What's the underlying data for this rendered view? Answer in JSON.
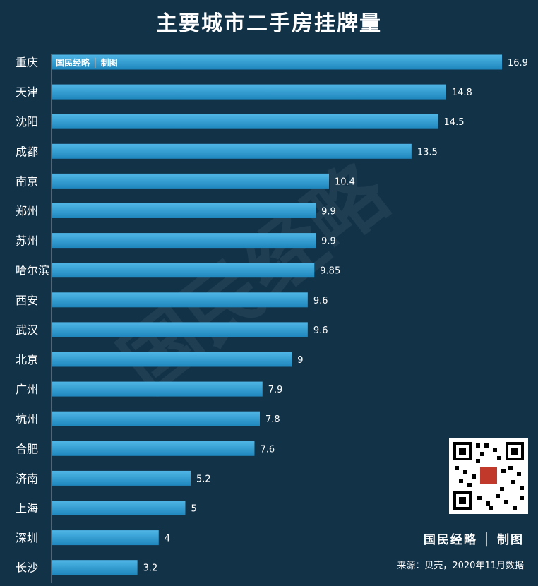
{
  "chart_data": {
    "type": "bar",
    "orientation": "horizontal",
    "title": "主要城市二手房挂牌量",
    "categories": [
      "重庆",
      "天津",
      "沈阳",
      "成都",
      "南京",
      "郑州",
      "苏州",
      "哈尔滨",
      "西安",
      "武汉",
      "北京",
      "广州",
      "杭州",
      "合肥",
      "济南",
      "上海",
      "深圳",
      "长沙"
    ],
    "values": [
      16.9,
      14.8,
      14.5,
      13.5,
      10.4,
      9.9,
      9.9,
      9.85,
      9.6,
      9.6,
      9,
      7.9,
      7.8,
      7.6,
      5.2,
      5,
      4,
      3.2
    ],
    "value_labels": [
      "16.9",
      "14.8",
      "14.5",
      "13.5",
      "10.4",
      "9.9",
      "9.9",
      "9.85",
      "9.6",
      "9.6",
      "9",
      "7.9",
      "7.8",
      "7.6",
      "5.2",
      "5",
      "4",
      "3.2"
    ],
    "xlim": [
      0,
      16.9
    ],
    "grid": false,
    "bar_color": "#2d9bd0"
  },
  "in_bar_label": "国民经略 │ 制图",
  "watermark": "国民经略",
  "brand": "国民经略 │ 制图",
  "source": "来源：贝壳，2020年11月数据",
  "colors": {
    "background": "#123248",
    "bar": "#2d9bd0",
    "text": "#ffffff"
  }
}
